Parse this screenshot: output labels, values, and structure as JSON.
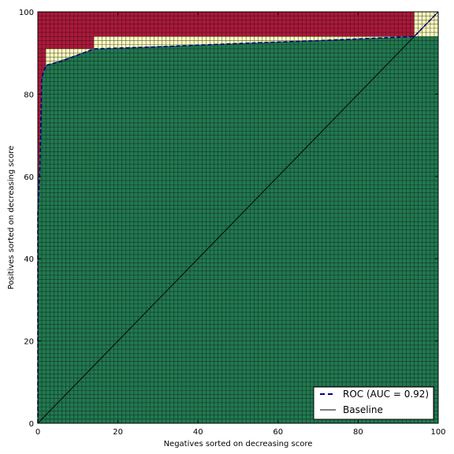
{
  "chart_data": {
    "type": "heatmap",
    "title": "",
    "xlabel": "Negatives sorted on decreasing score",
    "ylabel": "Positives sorted on decreasing score",
    "xlim": [
      0,
      100
    ],
    "ylim": [
      0,
      100
    ],
    "xticks": [
      "0",
      "20",
      "40",
      "60",
      "80",
      "100"
    ],
    "yticks": [
      "0",
      "20",
      "40",
      "60",
      "80",
      "100"
    ],
    "grid": true,
    "grid_cells_per_axis": 100,
    "colors": {
      "correct": "#1f7a50",
      "tie": "#ffffc0",
      "wrong": "#b0173a",
      "grid_line": "#1a1a1a",
      "roc": "#000080",
      "baseline": "#000000"
    },
    "roc_curve": {
      "name": "ROC (AUC = 0.92)",
      "style": "dashed",
      "points": [
        [
          0,
          0
        ],
        [
          0,
          51
        ],
        [
          0.5,
          62
        ],
        [
          0.8,
          75
        ],
        [
          1,
          84
        ],
        [
          2,
          87
        ],
        [
          6,
          88
        ],
        [
          14,
          91
        ],
        [
          30,
          91.5
        ],
        [
          50,
          92.3
        ],
        [
          70,
          93
        ],
        [
          94,
          94
        ],
        [
          100,
          100
        ]
      ]
    },
    "baseline": {
      "name": "Baseline",
      "style": "solid",
      "points": [
        [
          0,
          0
        ],
        [
          100,
          100
        ]
      ]
    },
    "correct_region": [
      [
        0,
        51
      ],
      [
        1,
        84
      ],
      [
        2,
        87
      ],
      [
        14,
        91
      ],
      [
        94,
        94
      ],
      [
        100,
        94
      ]
    ],
    "tie_region": [
      [
        0,
        51
      ],
      [
        1,
        84
      ],
      [
        2,
        87
      ],
      [
        2,
        91
      ],
      [
        14,
        91
      ],
      [
        14,
        94
      ],
      [
        94,
        94
      ],
      [
        94,
        100
      ],
      [
        100,
        100
      ]
    ],
    "legend": {
      "placement": "lower-right",
      "entries": [
        "ROC (AUC = 0.92)",
        "Baseline"
      ]
    }
  }
}
